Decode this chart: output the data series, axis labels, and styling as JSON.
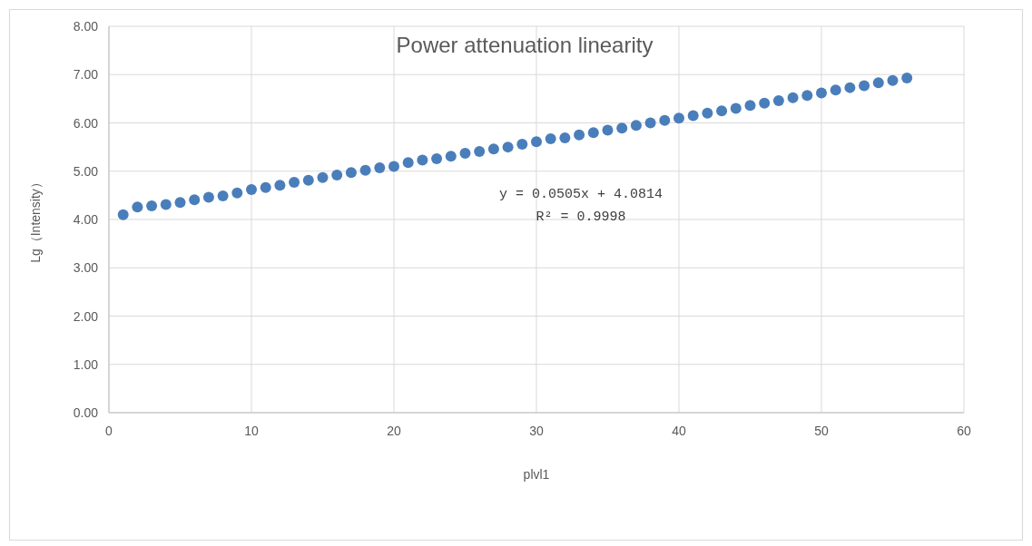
{
  "chart_data": {
    "type": "scatter",
    "title": "Power attenuation linearity",
    "xlabel": "plvl1",
    "ylabel": "Lg（Intensity）",
    "annotations": [
      "y = 0.0505x + 4.0814",
      "R² = 0.9998"
    ],
    "x": [
      1,
      2,
      3,
      4,
      5,
      6,
      7,
      8,
      9,
      10,
      11,
      12,
      13,
      14,
      15,
      16,
      17,
      18,
      19,
      20,
      21,
      22,
      23,
      24,
      25,
      26,
      27,
      28,
      29,
      30,
      31,
      32,
      33,
      34,
      35,
      36,
      37,
      38,
      39,
      40,
      41,
      42,
      43,
      44,
      45,
      46,
      47,
      48,
      49,
      50,
      51,
      52,
      53,
      54,
      55,
      56
    ],
    "series": [
      {
        "color": "#4a7ebb",
        "values": [
          4.1,
          4.26,
          4.28,
          4.31,
          4.35,
          4.41,
          4.46,
          4.49,
          4.55,
          4.62,
          4.66,
          4.71,
          4.77,
          4.81,
          4.87,
          4.92,
          4.97,
          5.02,
          5.07,
          5.1,
          5.18,
          5.23,
          5.26,
          5.31,
          5.37,
          5.41,
          5.46,
          5.5,
          5.56,
          5.61,
          5.67,
          5.69,
          5.75,
          5.8,
          5.85,
          5.89,
          5.95,
          6.0,
          6.05,
          6.1,
          6.15,
          6.2,
          6.25,
          6.3,
          6.36,
          6.41,
          6.46,
          6.52,
          6.57,
          6.62,
          6.68,
          6.73,
          6.77,
          6.83,
          6.88,
          6.93
        ]
      }
    ],
    "xlim": [
      0,
      60
    ],
    "xticks": [
      0,
      10,
      20,
      30,
      40,
      50,
      60
    ],
    "ylim": [
      0,
      8
    ],
    "yticks": [
      {
        "value": 0,
        "label": "0.00"
      },
      {
        "value": 1,
        "label": "1.00"
      },
      {
        "value": 2,
        "label": "2.00"
      },
      {
        "value": 3,
        "label": "3.00"
      },
      {
        "value": 4,
        "label": "4.00"
      },
      {
        "value": 5,
        "label": "5.00"
      },
      {
        "value": 6,
        "label": "6.00"
      },
      {
        "value": 7,
        "label": "7.00"
      },
      {
        "value": 8,
        "label": "8.00"
      }
    ],
    "grid": true,
    "marker": "circle"
  }
}
